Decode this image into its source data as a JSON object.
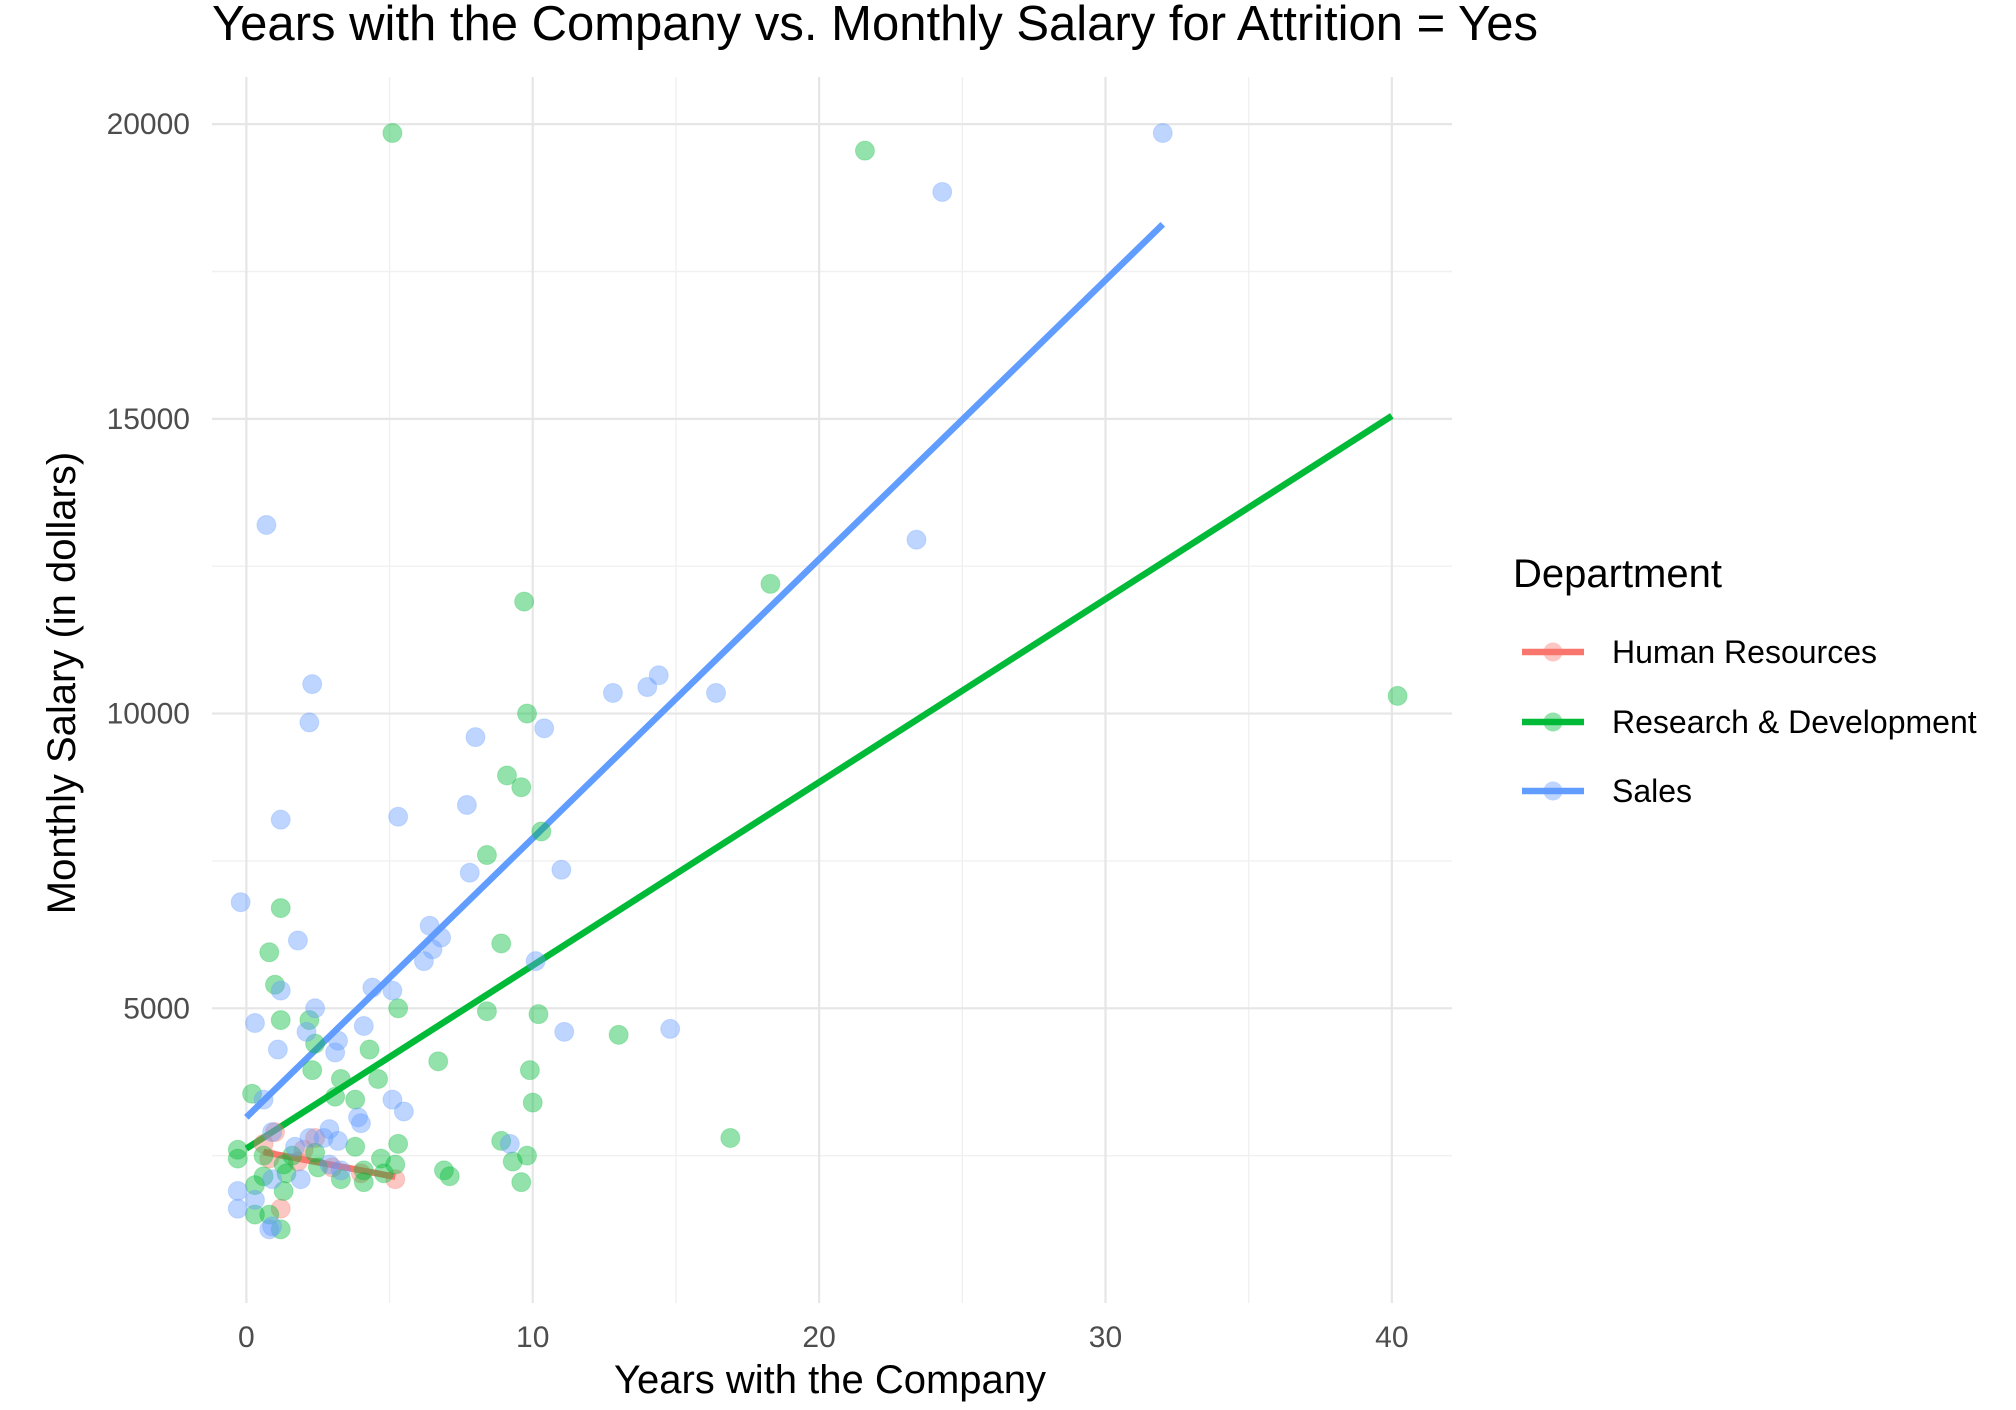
{
  "chart_data": {
    "type": "scatter",
    "title": "Years with the Company vs. Monthly Salary for Attrition = Yes",
    "xlabel": "Years with the Company",
    "ylabel": "Monthly Salary (in dollars)",
    "xlim": [
      -1.2,
      42.1
    ],
    "ylim": [
      0,
      20800
    ],
    "x_ticks": [
      0,
      10,
      20,
      30,
      40
    ],
    "x_tick_labels": [
      "0",
      "10",
      "20",
      "30",
      "40"
    ],
    "y_ticks": [
      5000,
      10000,
      15000,
      20000
    ],
    "y_tick_labels": [
      "5000",
      "10000",
      "15000",
      "20000"
    ],
    "x_minor": [
      5,
      15,
      25,
      35
    ],
    "y_minor": [
      2500,
      7500,
      12500,
      17500
    ],
    "grid": true,
    "legend": {
      "title": "Department",
      "position": "right"
    },
    "series": [
      {
        "name": "Human Resources",
        "color": "#F8766D",
        "points": [
          [
            0.6,
            2700
          ],
          [
            1.0,
            2900
          ],
          [
            1.8,
            2400
          ],
          [
            2.4,
            2800
          ],
          [
            1.2,
            1600
          ],
          [
            2.0,
            2600
          ],
          [
            3.0,
            2300
          ],
          [
            4.0,
            2200
          ],
          [
            5.2,
            2100
          ],
          [
            0.8,
            2450
          ]
        ],
        "trend": [
          [
            0.6,
            2560
          ],
          [
            5.2,
            2140
          ]
        ]
      },
      {
        "name": "Research & Development",
        "color": "#00BA38",
        "points": [
          [
            5.1,
            19850
          ],
          [
            21.6,
            19550
          ],
          [
            18.3,
            12200
          ],
          [
            9.7,
            11900
          ],
          [
            40.2,
            10300
          ],
          [
            9.8,
            10000
          ],
          [
            10.3,
            8000
          ],
          [
            9.1,
            8950
          ],
          [
            9.6,
            8750
          ],
          [
            8.4,
            7600
          ],
          [
            8.9,
            6100
          ],
          [
            1.2,
            6700
          ],
          [
            0.8,
            5950
          ],
          [
            1.0,
            5400
          ],
          [
            1.2,
            4800
          ],
          [
            2.2,
            4800
          ],
          [
            5.3,
            5000
          ],
          [
            8.4,
            4950
          ],
          [
            10.2,
            4900
          ],
          [
            13.0,
            4550
          ],
          [
            2.4,
            4400
          ],
          [
            4.3,
            4300
          ],
          [
            6.7,
            4100
          ],
          [
            9.9,
            3950
          ],
          [
            2.3,
            3950
          ],
          [
            3.3,
            3800
          ],
          [
            4.6,
            3800
          ],
          [
            0.2,
            3550
          ],
          [
            3.1,
            3500
          ],
          [
            3.8,
            3450
          ],
          [
            10.0,
            3400
          ],
          [
            16.9,
            2800
          ],
          [
            8.9,
            2750
          ],
          [
            5.3,
            2700
          ],
          [
            3.8,
            2650
          ],
          [
            -0.3,
            2600
          ],
          [
            2.4,
            2550
          ],
          [
            0.6,
            2500
          ],
          [
            1.6,
            2500
          ],
          [
            9.8,
            2500
          ],
          [
            4.7,
            2450
          ],
          [
            -0.3,
            2450
          ],
          [
            9.3,
            2400
          ],
          [
            1.3,
            2350
          ],
          [
            5.2,
            2350
          ],
          [
            2.5,
            2300
          ],
          [
            4.1,
            2250
          ],
          [
            6.9,
            2250
          ],
          [
            1.4,
            2200
          ],
          [
            4.8,
            2200
          ],
          [
            0.6,
            2150
          ],
          [
            7.1,
            2150
          ],
          [
            3.3,
            2100
          ],
          [
            4.1,
            2050
          ],
          [
            9.6,
            2050
          ],
          [
            0.3,
            2000
          ],
          [
            1.3,
            1900
          ],
          [
            0.3,
            1500
          ],
          [
            0.8,
            1500
          ],
          [
            1.2,
            1250
          ]
        ],
        "trend": [
          [
            0,
            2620
          ],
          [
            40,
            15050
          ]
        ]
      },
      {
        "name": "Sales",
        "color": "#619CFF",
        "points": [
          [
            32.0,
            19850
          ],
          [
            24.3,
            18850
          ],
          [
            23.4,
            12950
          ],
          [
            0.7,
            13200
          ],
          [
            2.3,
            10500
          ],
          [
            14.4,
            10650
          ],
          [
            14.0,
            10450
          ],
          [
            12.8,
            10350
          ],
          [
            16.4,
            10350
          ],
          [
            2.2,
            9850
          ],
          [
            10.4,
            9750
          ],
          [
            8.0,
            9600
          ],
          [
            7.7,
            8450
          ],
          [
            5.3,
            8250
          ],
          [
            1.2,
            8200
          ],
          [
            11.0,
            7350
          ],
          [
            7.8,
            7300
          ],
          [
            -0.2,
            6800
          ],
          [
            6.4,
            6400
          ],
          [
            6.8,
            6200
          ],
          [
            1.8,
            6150
          ],
          [
            6.5,
            6000
          ],
          [
            6.2,
            5800
          ],
          [
            10.1,
            5800
          ],
          [
            4.4,
            5350
          ],
          [
            5.1,
            5300
          ],
          [
            1.2,
            5300
          ],
          [
            2.4,
            5000
          ],
          [
            0.3,
            4750
          ],
          [
            4.1,
            4700
          ],
          [
            2.1,
            4600
          ],
          [
            11.1,
            4600
          ],
          [
            14.8,
            4650
          ],
          [
            3.2,
            4450
          ],
          [
            3.1,
            4250
          ],
          [
            1.1,
            4300
          ],
          [
            5.1,
            3450
          ],
          [
            5.5,
            3250
          ],
          [
            3.9,
            3150
          ],
          [
            4.0,
            3050
          ],
          [
            0.6,
            3450
          ],
          [
            2.9,
            2950
          ],
          [
            9.2,
            2700
          ],
          [
            2.7,
            2800
          ],
          [
            3.2,
            2750
          ],
          [
            2.2,
            2800
          ],
          [
            0.9,
            2900
          ],
          [
            1.7,
            2650
          ],
          [
            2.9,
            2350
          ],
          [
            3.3,
            2250
          ],
          [
            1.9,
            2100
          ],
          [
            0.9,
            2100
          ],
          [
            -0.3,
            1900
          ],
          [
            0.3,
            1750
          ],
          [
            -0.3,
            1600
          ],
          [
            0.8,
            1250
          ],
          [
            0.9,
            1300
          ]
        ],
        "trend": [
          [
            0,
            3150
          ],
          [
            32,
            18300
          ]
        ]
      }
    ]
  }
}
